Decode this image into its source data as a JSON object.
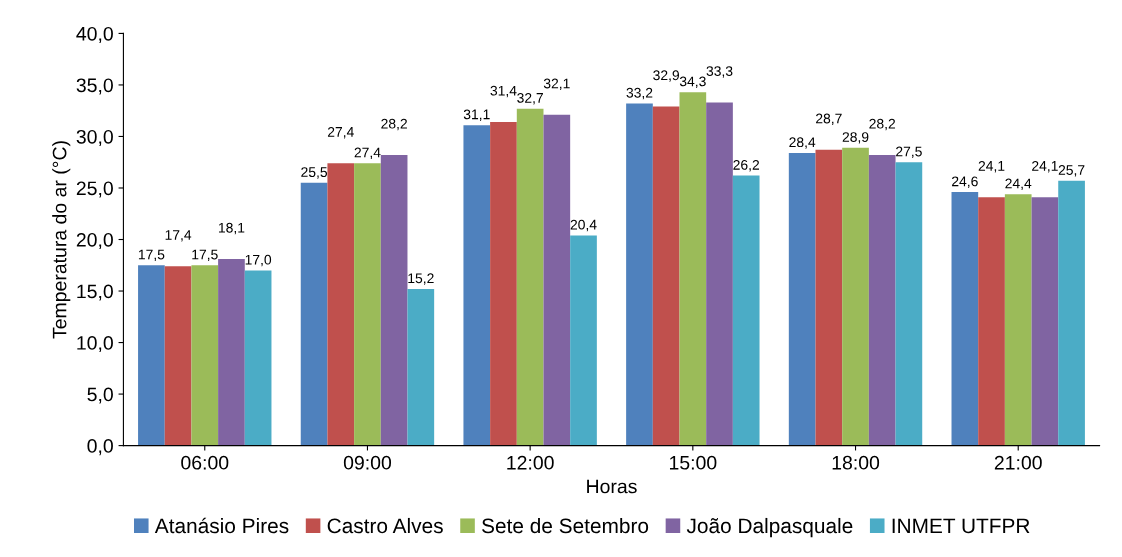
{
  "chart_data": {
    "type": "bar",
    "xlabel": "Horas",
    "ylabel": "Temperatura do ar (°C)",
    "categories": [
      "06:00",
      "09:00",
      "12:00",
      "15:00",
      "18:00",
      "21:00"
    ],
    "series": [
      {
        "name": "Atanásio Pires",
        "color": "#4f81bd",
        "values": [
          17.5,
          25.5,
          31.1,
          33.2,
          28.4,
          24.6
        ],
        "value_labels": [
          "17,5",
          "25,5",
          "31,1",
          "33,2",
          "28,4",
          "24,6"
        ]
      },
      {
        "name": "Castro Alves",
        "color": "#c0504d",
        "values": [
          17.4,
          27.4,
          31.4,
          32.9,
          28.7,
          24.1
        ],
        "value_labels": [
          "17,4",
          "27,4",
          "31,4",
          "32,9",
          "28,7",
          "24,1"
        ]
      },
      {
        "name": "Sete de Setembro",
        "color": "#9bbb59",
        "values": [
          17.5,
          27.4,
          32.7,
          34.3,
          28.9,
          24.4
        ],
        "value_labels": [
          "17,5",
          "27,4",
          "32,7",
          "34,3",
          "28,9",
          "24,4"
        ]
      },
      {
        "name": "João Dalpasquale",
        "color": "#8064a2",
        "values": [
          18.1,
          28.2,
          32.1,
          33.3,
          28.2,
          24.1
        ],
        "value_labels": [
          "18,1",
          "28,2",
          "32,1",
          "33,3",
          "28,2",
          "24,1"
        ]
      },
      {
        "name": "INMET UTFPR",
        "color": "#4bacc6",
        "values": [
          17.0,
          15.2,
          20.4,
          26.2,
          27.5,
          25.7
        ],
        "value_labels": [
          "17,0",
          "15,2",
          "20,4",
          "26,2",
          "27,5",
          "25,7"
        ]
      }
    ],
    "ylim": [
      0,
      40
    ],
    "yticks": [
      {
        "value": 0,
        "label": "0,0"
      },
      {
        "value": 5,
        "label": "5,0"
      },
      {
        "value": 10,
        "label": "10,0"
      },
      {
        "value": 15,
        "label": "15,0"
      },
      {
        "value": 20,
        "label": "20,0"
      },
      {
        "value": 25,
        "label": "25,0"
      },
      {
        "value": 30,
        "label": "30,0"
      },
      {
        "value": 35,
        "label": "35,0"
      },
      {
        "value": 40,
        "label": "40,0"
      }
    ],
    "grid": false,
    "legend": "bottom"
  }
}
